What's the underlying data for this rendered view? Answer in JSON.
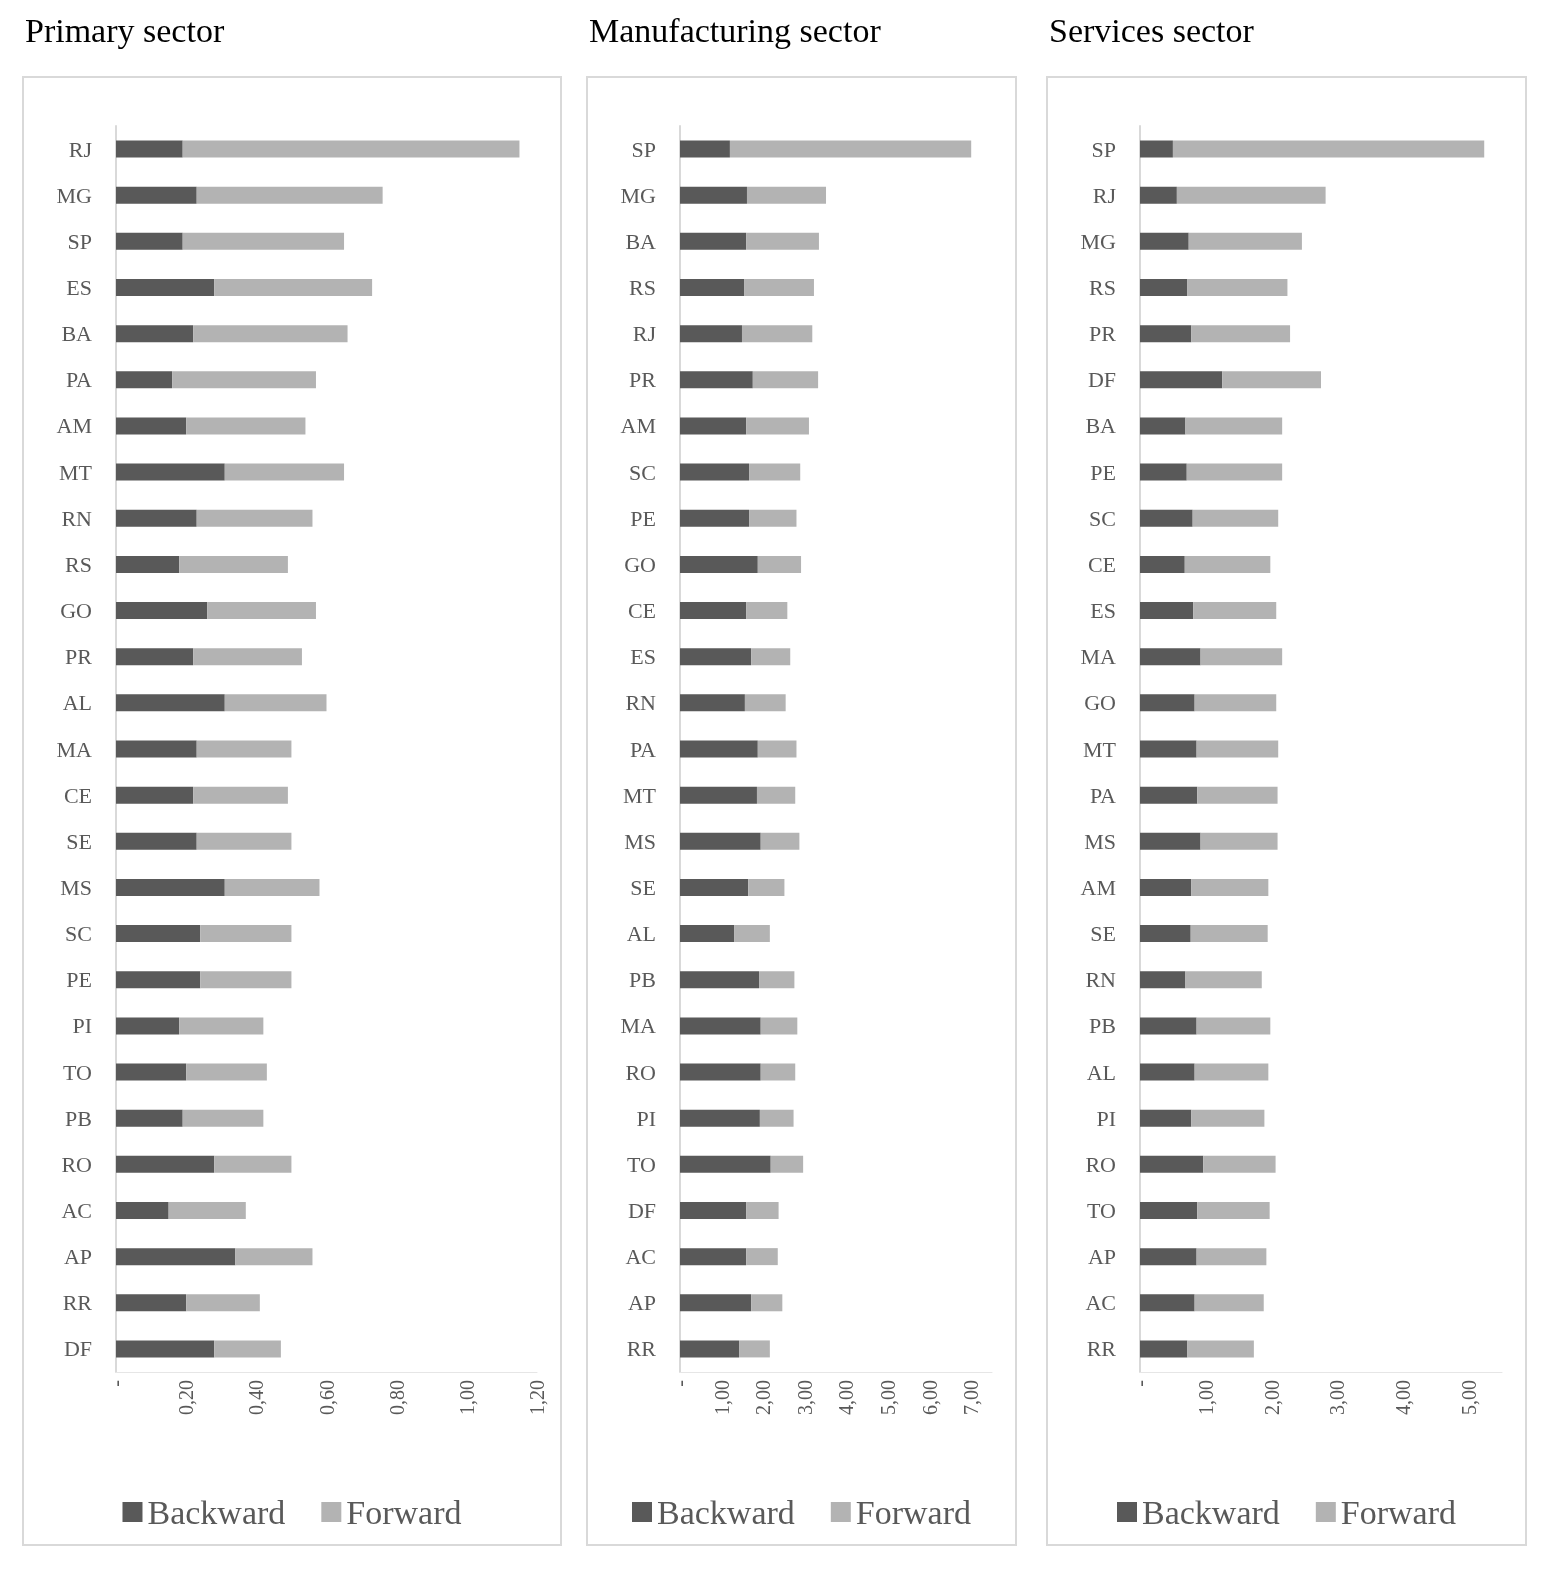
{
  "chart_data": [
    {
      "type": "bar",
      "title": "Primary sector",
      "orientation": "horizontal",
      "stacked": true,
      "legend": "bottom",
      "grid": false,
      "categories": [
        "RJ",
        "MG",
        "SP",
        "ES",
        "BA",
        "PA",
        "AM",
        "MT",
        "RN",
        "RS",
        "GO",
        "PR",
        "AL",
        "MA",
        "CE",
        "SE",
        "MS",
        "SC",
        "PE",
        "PI",
        "TO",
        "PB",
        "RO",
        "AC",
        "AP",
        "RR",
        "DF"
      ],
      "series": [
        {
          "name": "Backward",
          "color": "#595959",
          "values": [
            0.19,
            0.23,
            0.19,
            0.28,
            0.22,
            0.16,
            0.2,
            0.31,
            0.23,
            0.18,
            0.26,
            0.22,
            0.31,
            0.23,
            0.22,
            0.23,
            0.31,
            0.24,
            0.24,
            0.18,
            0.2,
            0.19,
            0.28,
            0.15,
            0.34,
            0.2,
            0.28
          ]
        },
        {
          "name": "Forward",
          "color": "#b3b3b3",
          "values": [
            0.96,
            0.53,
            0.46,
            0.45,
            0.44,
            0.41,
            0.34,
            0.34,
            0.33,
            0.31,
            0.31,
            0.31,
            0.29,
            0.27,
            0.27,
            0.27,
            0.27,
            0.26,
            0.26,
            0.24,
            0.23,
            0.23,
            0.22,
            0.22,
            0.22,
            0.21,
            0.19
          ]
        }
      ],
      "xlim": [
        0,
        1.2
      ],
      "xticks": [
        {
          "value": 0,
          "label": "-"
        },
        {
          "value": 0.2,
          "label": "0,20"
        },
        {
          "value": 0.4,
          "label": "0,40"
        },
        {
          "value": 0.6,
          "label": "0,60"
        },
        {
          "value": 0.8,
          "label": "0,80"
        },
        {
          "value": 1.0,
          "label": "1,00"
        },
        {
          "value": 1.2,
          "label": "1,20"
        }
      ]
    },
    {
      "type": "bar",
      "title": "Manufacturing sector",
      "orientation": "horizontal",
      "stacked": true,
      "legend": "bottom",
      "grid": false,
      "categories": [
        "SP",
        "MG",
        "BA",
        "RS",
        "RJ",
        "PR",
        "AM",
        "SC",
        "PE",
        "GO",
        "CE",
        "ES",
        "RN",
        "PA",
        "MT",
        "MS",
        "SE",
        "AL",
        "PB",
        "MA",
        "RO",
        "PI",
        "TO",
        "DF",
        "AC",
        "AP",
        "RR"
      ],
      "series": [
        {
          "name": "Backward",
          "color": "#595959",
          "values": [
            1.2,
            1.61,
            1.59,
            1.54,
            1.49,
            1.75,
            1.59,
            1.66,
            1.66,
            1.87,
            1.59,
            1.71,
            1.56,
            1.87,
            1.85,
            1.94,
            1.64,
            1.3,
            1.9,
            1.94,
            1.94,
            1.92,
            2.18,
            1.59,
            1.59,
            1.71,
            1.42
          ]
        },
        {
          "name": "Forward",
          "color": "#b3b3b3",
          "values": [
            5.8,
            1.9,
            1.75,
            1.68,
            1.69,
            1.57,
            1.51,
            1.23,
            1.14,
            1.04,
            0.99,
            0.94,
            0.98,
            0.93,
            0.92,
            0.93,
            0.87,
            0.86,
            0.85,
            0.88,
            0.83,
            0.81,
            0.78,
            0.78,
            0.76,
            0.75,
            0.74
          ]
        }
      ],
      "xlim": [
        0,
        7.5
      ],
      "xticks": [
        {
          "value": 0,
          "label": "-"
        },
        {
          "value": 1,
          "label": "1,00"
        },
        {
          "value": 2,
          "label": "2,00"
        },
        {
          "value": 3,
          "label": "3,00"
        },
        {
          "value": 4,
          "label": "4,00"
        },
        {
          "value": 5,
          "label": "5,00"
        },
        {
          "value": 6,
          "label": "6,00"
        },
        {
          "value": 7,
          "label": "7,00"
        }
      ]
    },
    {
      "type": "bar",
      "title": "Services sector",
      "orientation": "horizontal",
      "stacked": true,
      "legend": "bottom",
      "grid": false,
      "categories": [
        "SP",
        "RJ",
        "MG",
        "RS",
        "PR",
        "DF",
        "BA",
        "PE",
        "SC",
        "CE",
        "ES",
        "MA",
        "GO",
        "MT",
        "PA",
        "MS",
        "AM",
        "SE",
        "RN",
        "PB",
        "AL",
        "PI",
        "RO",
        "TO",
        "AP",
        "AC",
        "RR"
      ],
      "series": [
        {
          "name": "Backward",
          "color": "#595959",
          "values": [
            0.5,
            0.56,
            0.74,
            0.72,
            0.78,
            1.25,
            0.69,
            0.71,
            0.8,
            0.68,
            0.81,
            0.92,
            0.83,
            0.86,
            0.87,
            0.92,
            0.78,
            0.77,
            0.69,
            0.86,
            0.83,
            0.78,
            0.96,
            0.87,
            0.86,
            0.83,
            0.72
          ]
        },
        {
          "name": "Forward",
          "color": "#b3b3b3",
          "values": [
            4.73,
            2.26,
            1.72,
            1.52,
            1.5,
            1.5,
            1.47,
            1.45,
            1.3,
            1.3,
            1.26,
            1.24,
            1.24,
            1.24,
            1.22,
            1.17,
            1.17,
            1.17,
            1.16,
            1.12,
            1.12,
            1.11,
            1.1,
            1.1,
            1.06,
            1.05,
            1.01
          ]
        }
      ],
      "xlim": [
        0,
        5.5
      ],
      "xticks": [
        {
          "value": 0,
          "label": "-"
        },
        {
          "value": 1,
          "label": "1,00"
        },
        {
          "value": 2,
          "label": "2,00"
        },
        {
          "value": 3,
          "label": "3,00"
        },
        {
          "value": 4,
          "label": "4,00"
        },
        {
          "value": 5,
          "label": "5,00"
        }
      ]
    }
  ]
}
